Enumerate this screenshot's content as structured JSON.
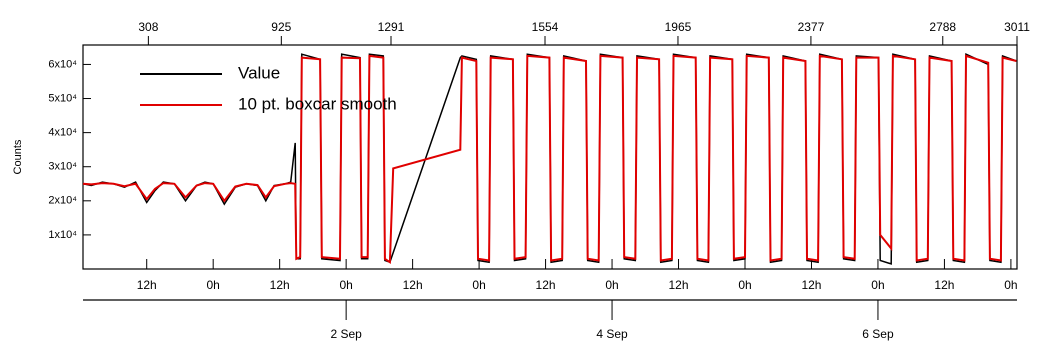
{
  "chart_data": {
    "type": "line",
    "ylabel": "Counts",
    "legend": "upper left",
    "x": [
      0.5,
      2,
      4,
      6,
      8,
      10,
      12,
      13.5,
      15,
      17,
      19,
      21,
      22.5,
      24,
      26,
      28,
      30,
      32,
      33.5,
      35,
      37,
      38,
      38.8,
      39.0,
      39.7,
      40.0,
      43.3,
      43.6,
      46.9,
      47.2,
      50.5,
      50.8,
      51.9,
      52.2,
      54.7,
      55.0,
      55.9,
      56.5,
      68.6,
      68.9,
      71.5,
      71.8,
      73.8,
      74.1,
      78.1,
      78.4,
      80.4,
      80.7,
      84.7,
      85.0,
      87.0,
      87.3,
      91.3,
      91.6,
      93.6,
      93.9,
      97.9,
      98.2,
      100.2,
      100.5,
      104.5,
      104.8,
      106.8,
      107.1,
      111.1,
      111.4,
      113.4,
      113.7,
      117.7,
      118.0,
      120.0,
      120.3,
      124.3,
      124.6,
      126.6,
      126.9,
      130.9,
      131.2,
      133.2,
      133.5,
      137.5,
      137.8,
      139.8,
      140.1,
      144.1,
      144.4,
      146.4,
      146.7,
      150.7,
      151.0,
      153.0,
      153.3,
      157.3,
      157.6,
      159.6,
      159.9,
      163.9,
      164.2,
      166.2,
      166.5,
      169.0
    ],
    "series": [
      {
        "name": "Value",
        "color": "#000000",
        "values": [
          25000,
          24500,
          25500,
          25000,
          24000,
          25500,
          19500,
          23000,
          25500,
          25000,
          20000,
          24500,
          25500,
          25000,
          19000,
          24000,
          25000,
          24500,
          20000,
          24500,
          25000,
          25500,
          37000,
          3000,
          3000,
          63000,
          61500,
          3000,
          2500,
          63000,
          62000,
          3000,
          3000,
          63000,
          62500,
          2500,
          2000,
          4800,
          62000,
          62500,
          61500,
          2500,
          2000,
          62500,
          61500,
          2500,
          3000,
          63000,
          62000,
          2000,
          2500,
          62500,
          61000,
          2500,
          2000,
          63000,
          62000,
          3000,
          2500,
          62500,
          61500,
          2000,
          2500,
          63000,
          62000,
          2500,
          2000,
          62500,
          61500,
          2500,
          3000,
          63000,
          62000,
          2000,
          2500,
          62500,
          61000,
          2500,
          2000,
          63000,
          61500,
          3000,
          2500,
          62500,
          62000,
          2500,
          1500,
          63000,
          61500,
          2000,
          2500,
          62500,
          61000,
          2500,
          2000,
          63000,
          60000,
          2500,
          2000,
          62500,
          61000
        ]
      },
      {
        "name": "10 pt. boxcar smooth",
        "color": "#e00000",
        "values": [
          25000,
          24800,
          25200,
          25000,
          24300,
          25000,
          20500,
          23500,
          25200,
          25000,
          21000,
          24500,
          25200,
          25000,
          20000,
          24200,
          25000,
          24600,
          21000,
          24300,
          25000,
          25200,
          25000,
          3000,
          3500,
          62000,
          61500,
          3500,
          3000,
          62000,
          61800,
          3500,
          3500,
          62500,
          62000,
          3000,
          2000,
          29500,
          35000,
          62000,
          61000,
          3000,
          2500,
          62000,
          61500,
          3000,
          3500,
          62500,
          62000,
          2500,
          3000,
          62000,
          61000,
          3000,
          2500,
          62500,
          62000,
          3500,
          3000,
          62000,
          61500,
          2500,
          3000,
          62500,
          62000,
          3000,
          2500,
          62000,
          61500,
          3000,
          3500,
          62500,
          62000,
          2500,
          3000,
          62000,
          61000,
          3000,
          2500,
          62500,
          61500,
          3500,
          3000,
          62000,
          62000,
          10000,
          6000,
          62500,
          61500,
          2500,
          3000,
          62000,
          61000,
          3000,
          2500,
          62500,
          60500,
          3000,
          2500,
          62000,
          61000
        ]
      }
    ],
    "xlim": [
      0.5,
      169.1
    ],
    "ylim": [
      0,
      65700
    ],
    "yticks": [
      {
        "value": 10000,
        "label": "1x10⁴"
      },
      {
        "value": 20000,
        "label": "2x10⁴"
      },
      {
        "value": 30000,
        "label": "3x10⁴"
      },
      {
        "value": 40000,
        "label": "4x10⁴"
      },
      {
        "value": 50000,
        "label": "5x10⁴"
      },
      {
        "value": 60000,
        "label": "6x10⁴"
      }
    ],
    "xticks": [
      {
        "value": 12,
        "label": "12h"
      },
      {
        "value": 24,
        "label": "0h"
      },
      {
        "value": 36,
        "label": "12h"
      },
      {
        "value": 48,
        "label": "0h"
      },
      {
        "value": 60,
        "label": "12h"
      },
      {
        "value": 72,
        "label": "0h"
      },
      {
        "value": 84,
        "label": "12h"
      },
      {
        "value": 96,
        "label": "0h"
      },
      {
        "value": 108,
        "label": "12h"
      },
      {
        "value": 120,
        "label": "0h"
      },
      {
        "value": 132,
        "label": "12h"
      },
      {
        "value": 144,
        "label": "0h"
      },
      {
        "value": 156,
        "label": "12h"
      },
      {
        "value": 168,
        "label": "0h"
      }
    ],
    "date_ticks": [
      {
        "value": 48,
        "label": "2 Sep"
      },
      {
        "value": 96,
        "label": "4 Sep"
      },
      {
        "value": 144,
        "label": "6 Sep"
      }
    ],
    "x2ticks": [
      {
        "value": 12.3,
        "label": "308"
      },
      {
        "value": 36.3,
        "label": "925"
      },
      {
        "value": 56.1,
        "label": "1291"
      },
      {
        "value": 83.9,
        "label": "1554"
      },
      {
        "value": 107.9,
        "label": "1965"
      },
      {
        "value": 131.9,
        "label": "2377"
      },
      {
        "value": 155.7,
        "label": "2788"
      },
      {
        "value": 169.1,
        "label": "3011"
      }
    ]
  }
}
